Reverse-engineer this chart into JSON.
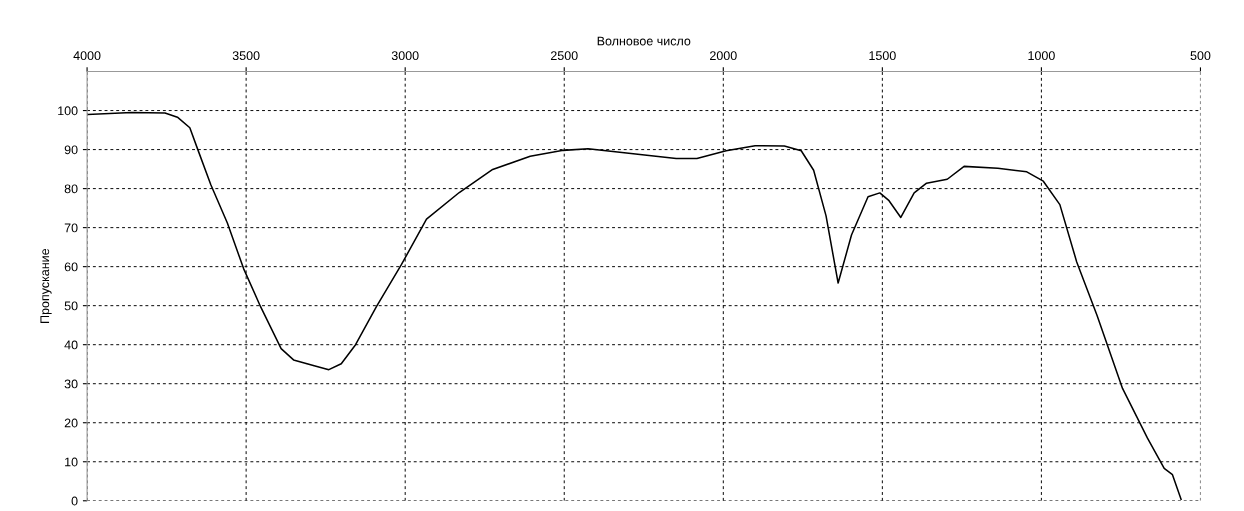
{
  "chart_data": {
    "type": "line",
    "xlabel": "Волновое число",
    "ylabel": "Пропускание",
    "x": [
      3997,
      3860,
      3755,
      3716,
      3677,
      3651,
      3611,
      3559,
      3508,
      3455,
      3390,
      3351,
      3286,
      3240,
      3201,
      3156,
      3090,
      3012,
      2933,
      2830,
      2725,
      2607,
      2503,
      2425,
      2148,
      2083,
      1991,
      1900,
      1808,
      1755,
      1716,
      1677,
      1639,
      1597,
      1545,
      1508,
      1479,
      1442,
      1400,
      1361,
      1296,
      1243,
      1137,
      1046,
      994,
      942,
      889,
      825,
      745,
      667,
      614,
      588,
      561
    ],
    "series": [
      {
        "color": "#000000",
        "values": [
          99.0,
          99.5,
          99.4,
          98.3,
          95.6,
          89.8,
          81.0,
          71.2,
          59.5,
          49.8,
          39.0,
          36.1,
          34.6,
          33.6,
          35.1,
          40.0,
          49.8,
          60.5,
          72.2,
          79.0,
          84.9,
          88.3,
          89.8,
          90.2,
          87.7,
          87.7,
          89.7,
          91.0,
          90.9,
          89.7,
          84.7,
          73.0,
          55.8,
          68.1,
          77.9,
          78.9,
          76.9,
          72.6,
          78.9,
          81.4,
          82.4,
          85.7,
          85.2,
          84.3,
          81.9,
          75.9,
          61.2,
          47.5,
          28.8,
          16.1,
          8.3,
          6.7,
          0.4
        ]
      }
    ],
    "xlim": [
      4000,
      500
    ],
    "xticks": [
      4000,
      3500,
      3000,
      2500,
      2000,
      1500,
      1000,
      500
    ],
    "ylim": [
      0,
      110
    ],
    "yticks": [
      0,
      10,
      20,
      30,
      40,
      50,
      60,
      70,
      80,
      90,
      100
    ],
    "grid": true,
    "line_style": "solid"
  }
}
